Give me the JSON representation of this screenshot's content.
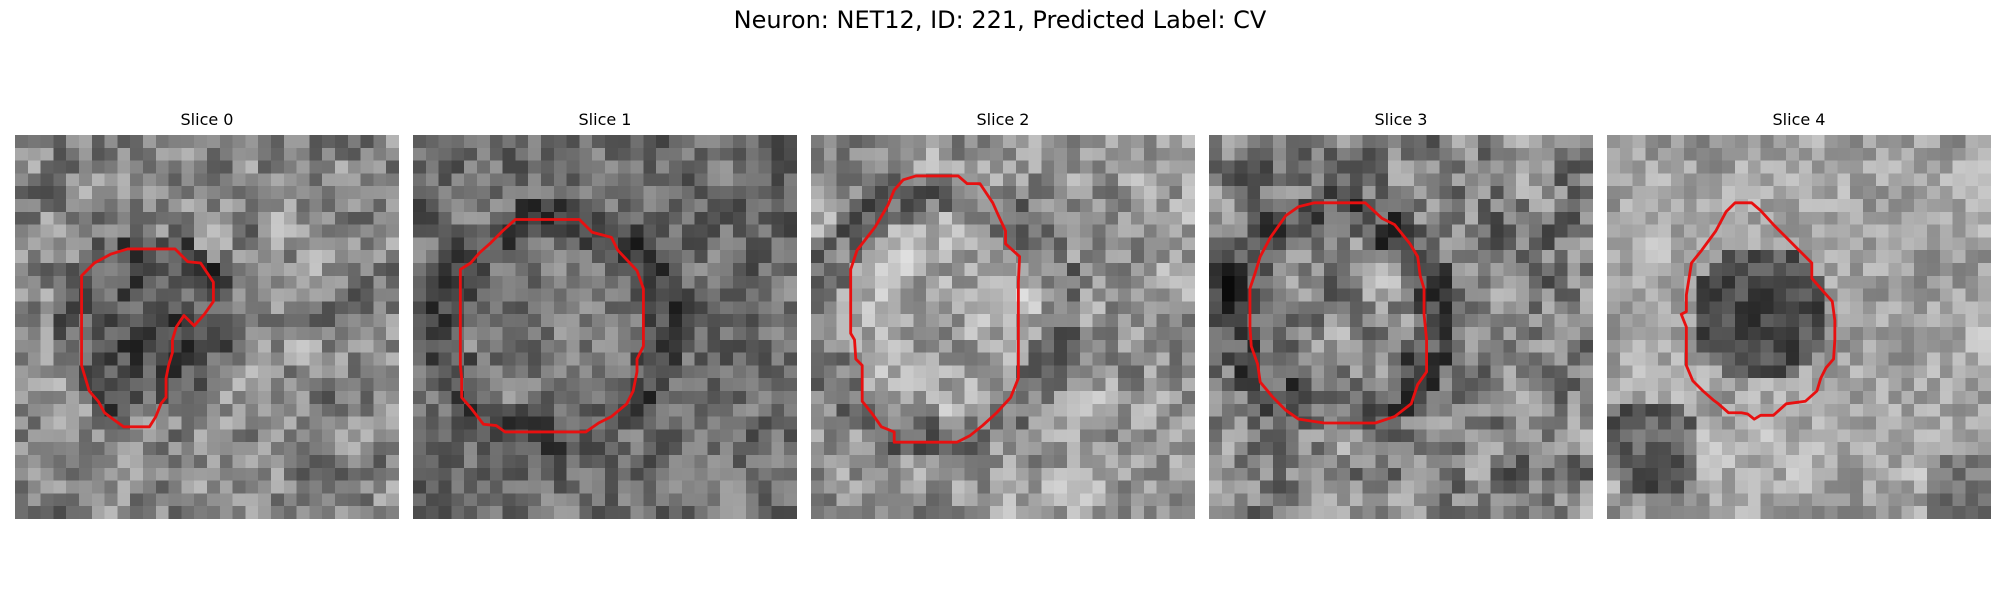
{
  "figure": {
    "title": "Neuron: NET12, ID: 221, Predicted Label: CV"
  },
  "outline_color": "#e81010",
  "panels": [
    {
      "title": "Slice 0",
      "image": {
        "brightness": "medium-light gray noise",
        "dark_cell": true
      },
      "outline": [
        [
          10.5,
          8.9
        ],
        [
          12.5,
          8.9
        ],
        [
          13.5,
          9.9
        ],
        [
          14.5,
          10
        ],
        [
          15.5,
          11.5
        ],
        [
          15.5,
          13
        ],
        [
          14.8,
          14
        ],
        [
          14,
          14.9
        ],
        [
          13.2,
          14.1
        ],
        [
          13,
          14.4
        ],
        [
          12.6,
          15
        ],
        [
          12.3,
          16
        ],
        [
          12.3,
          17
        ],
        [
          12,
          18
        ],
        [
          11.8,
          19
        ],
        [
          11.8,
          20.5
        ],
        [
          11.4,
          21
        ],
        [
          11,
          22
        ],
        [
          10.5,
          22.8
        ],
        [
          8.5,
          22.8
        ],
        [
          7.8,
          22.3
        ],
        [
          7,
          21.7
        ],
        [
          6.5,
          20.8
        ],
        [
          5.8,
          20
        ],
        [
          5.2,
          18
        ],
        [
          5.2,
          14
        ],
        [
          5.2,
          11
        ],
        [
          6.2,
          10
        ],
        [
          7.5,
          9.3
        ],
        [
          8.8,
          8.9
        ]
      ]
    },
    {
      "title": "Slice 1",
      "image": {
        "brightness": "darker gray noise"
      },
      "outline": [
        [
          8,
          6.6
        ],
        [
          13,
          6.6
        ],
        [
          14,
          7.6
        ],
        [
          15.5,
          8
        ],
        [
          16,
          9
        ],
        [
          17.5,
          10.6
        ],
        [
          18,
          12
        ],
        [
          18,
          13
        ],
        [
          18,
          15
        ],
        [
          18,
          16.5
        ],
        [
          17.5,
          17.5
        ],
        [
          17.5,
          18.5
        ],
        [
          17.2,
          20
        ],
        [
          16.7,
          21
        ],
        [
          15.5,
          22
        ],
        [
          14.5,
          22.5
        ],
        [
          13.5,
          23.2
        ],
        [
          7.2,
          23.2
        ],
        [
          6.5,
          22.7
        ],
        [
          5.5,
          22.6
        ],
        [
          4.5,
          21.3
        ],
        [
          3.8,
          20.5
        ],
        [
          3.8,
          19
        ],
        [
          3.7,
          18
        ],
        [
          3.7,
          12
        ],
        [
          3.7,
          10.5
        ],
        [
          4.5,
          10
        ],
        [
          5.2,
          9.2
        ],
        [
          6.1,
          8.4
        ],
        [
          7,
          7.5
        ]
      ]
    },
    {
      "title": "Slice 2",
      "image": {
        "brightness": "light gray noise"
      },
      "outline": [
        [
          8.2,
          3.2
        ],
        [
          11.5,
          3.2
        ],
        [
          12.2,
          3.8
        ],
        [
          13.2,
          3.8
        ],
        [
          14.2,
          5.3
        ],
        [
          14.6,
          6.2
        ],
        [
          15.2,
          7.5
        ],
        [
          15.2,
          8.5
        ],
        [
          16.3,
          9.5
        ],
        [
          16.2,
          11.5
        ],
        [
          16.2,
          16
        ],
        [
          16.2,
          19
        ],
        [
          15.6,
          20.5
        ],
        [
          14.5,
          21.7
        ],
        [
          13.4,
          22.7
        ],
        [
          12.4,
          23.5
        ],
        [
          11.4,
          24
        ],
        [
          8,
          24
        ],
        [
          6.5,
          24
        ],
        [
          6.5,
          23.2
        ],
        [
          5.5,
          22.8
        ],
        [
          4.8,
          21.8
        ],
        [
          4,
          20.8
        ],
        [
          4,
          18
        ],
        [
          3.5,
          17.5
        ],
        [
          3.4,
          16
        ],
        [
          3.1,
          15.5
        ],
        [
          3.1,
          12
        ],
        [
          3.1,
          10.5
        ],
        [
          3.6,
          9
        ],
        [
          5,
          7.2
        ],
        [
          6,
          5.5
        ],
        [
          6.5,
          4.3
        ],
        [
          7.2,
          3.5
        ]
      ]
    },
    {
      "title": "Slice 3",
      "image": {
        "brightness": "speckled gray noise"
      },
      "outline": [
        [
          8.2,
          5.3
        ],
        [
          12.2,
          5.3
        ],
        [
          13.5,
          6.5
        ],
        [
          14.5,
          7
        ],
        [
          15.7,
          8.5
        ],
        [
          16.3,
          9.5
        ],
        [
          16.5,
          11
        ],
        [
          16.8,
          12
        ],
        [
          16.8,
          14
        ],
        [
          17,
          16
        ],
        [
          17,
          18.5
        ],
        [
          16.3,
          19.5
        ],
        [
          15.8,
          21
        ],
        [
          14.5,
          22
        ],
        [
          13,
          22.5
        ],
        [
          11.2,
          22.5
        ],
        [
          9,
          22.5
        ],
        [
          7,
          22.2
        ],
        [
          6,
          21.5
        ],
        [
          5,
          20.5
        ],
        [
          4,
          19.3
        ],
        [
          3.8,
          17.9
        ],
        [
          3.3,
          16.5
        ],
        [
          3.2,
          15
        ],
        [
          3.2,
          12
        ],
        [
          3.6,
          10.8
        ],
        [
          4,
          9.5
        ],
        [
          4.8,
          8
        ],
        [
          6,
          6.3
        ],
        [
          7,
          5.6
        ]
      ]
    },
    {
      "title": "Slice 4",
      "image": {
        "brightness": "light gray with dark blobs"
      },
      "outline": [
        [
          10,
          5.3
        ],
        [
          11.3,
          5.3
        ],
        [
          12,
          5.9
        ],
        [
          13,
          7
        ],
        [
          14,
          8
        ],
        [
          15,
          9
        ],
        [
          16,
          10
        ],
        [
          16,
          11.2
        ],
        [
          16.7,
          12
        ],
        [
          17.6,
          13
        ],
        [
          17.8,
          14.5
        ],
        [
          17.8,
          16
        ],
        [
          17.7,
          17.5
        ],
        [
          17.1,
          18.2
        ],
        [
          16.7,
          19
        ],
        [
          16.4,
          20
        ],
        [
          15.5,
          20.8
        ],
        [
          14,
          21
        ],
        [
          13,
          21.9
        ],
        [
          12,
          21.9
        ],
        [
          11.5,
          22.2
        ],
        [
          11,
          21.8
        ],
        [
          10.5,
          21.7
        ],
        [
          9.5,
          21.7
        ],
        [
          8.7,
          21
        ],
        [
          8.3,
          20.7
        ],
        [
          7.5,
          20
        ],
        [
          6.7,
          19.2
        ],
        [
          6.2,
          18
        ],
        [
          6.2,
          15
        ],
        [
          6,
          14.5
        ],
        [
          5.8,
          14
        ],
        [
          6.2,
          13.8
        ],
        [
          6.2,
          12.5
        ],
        [
          6.6,
          10
        ],
        [
          7.4,
          9
        ],
        [
          8.5,
          7.5
        ],
        [
          9.3,
          6
        ]
      ]
    }
  ]
}
